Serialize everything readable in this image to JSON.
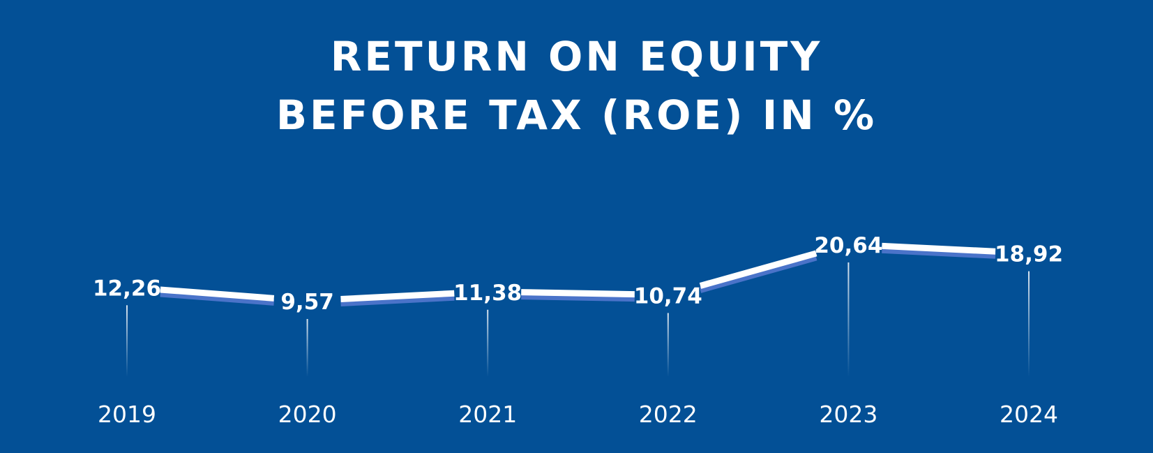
{
  "chart_data": {
    "type": "line",
    "title": [
      "RETURN ON EQUITY",
      "BEFORE TAX (ROE) IN %"
    ],
    "xlabel": "",
    "ylabel": "",
    "categories": [
      "2019",
      "2020",
      "2021",
      "2022",
      "2023",
      "2024"
    ],
    "series": [
      {
        "values": [
          12.26,
          9.57,
          11.38,
          10.74,
          20.64,
          18.92
        ],
        "labels": [
          "12,26",
          "9,57",
          "11,38",
          "10,74",
          "20,64",
          "18,92"
        ]
      }
    ],
    "ylim": [
      0,
      22
    ],
    "grid": false,
    "legend": "none"
  },
  "colors": {
    "background": "#035096",
    "line": "#ffffff",
    "line_shadow": "#4a73c9",
    "text": "#ffffff"
  }
}
